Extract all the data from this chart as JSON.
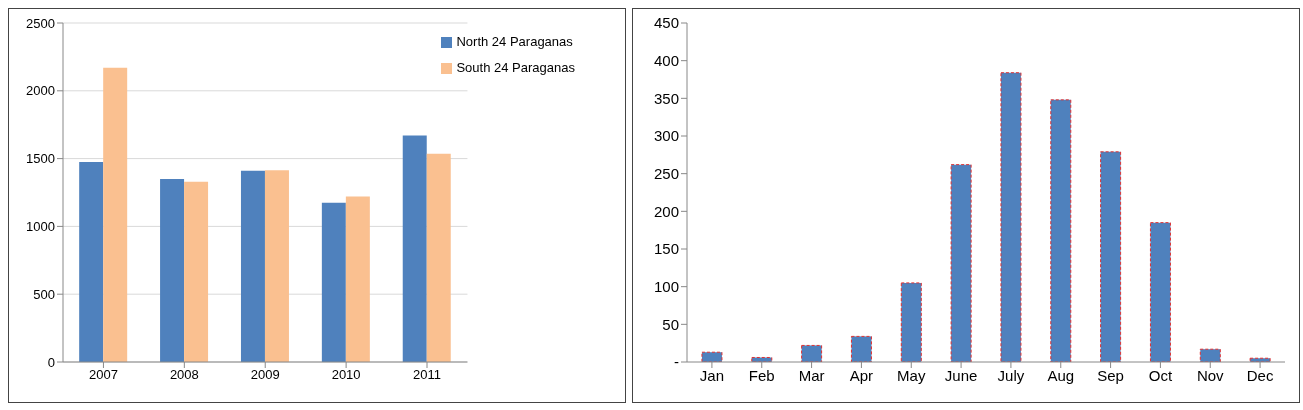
{
  "chart_data": [
    {
      "type": "bar",
      "categories": [
        "2007",
        "2008",
        "2009",
        "2010",
        "2011"
      ],
      "series": [
        {
          "name": "North 24 Paraganas",
          "color": "#4f81bd",
          "values": [
            1475,
            1350,
            1410,
            1175,
            1670
          ]
        },
        {
          "name": "South 24 Paraganas",
          "color": "#fac090",
          "values": [
            2170,
            1330,
            1415,
            1220,
            1535
          ]
        }
      ],
      "ylim": [
        0,
        2500
      ],
      "yticks": [
        0,
        500,
        1000,
        1500,
        2000,
        2500
      ],
      "grid": "y",
      "legend": "top right"
    },
    {
      "type": "bar",
      "categories": [
        "Jan",
        "Feb",
        "Mar",
        "Apr",
        "May",
        "June",
        "July",
        "Aug",
        "Sep",
        "Oct",
        "Nov",
        "Dec"
      ],
      "series": [
        {
          "color": "#4f81bd",
          "values": [
            13,
            6,
            22,
            34,
            105,
            262,
            384,
            348,
            279,
            185,
            17,
            5
          ]
        }
      ],
      "ylim": [
        0,
        450
      ],
      "yticks": [
        {
          "value": 0,
          "label": "-"
        },
        50,
        100,
        150,
        200,
        250,
        300,
        350,
        400,
        450
      ],
      "grid": false
    }
  ]
}
